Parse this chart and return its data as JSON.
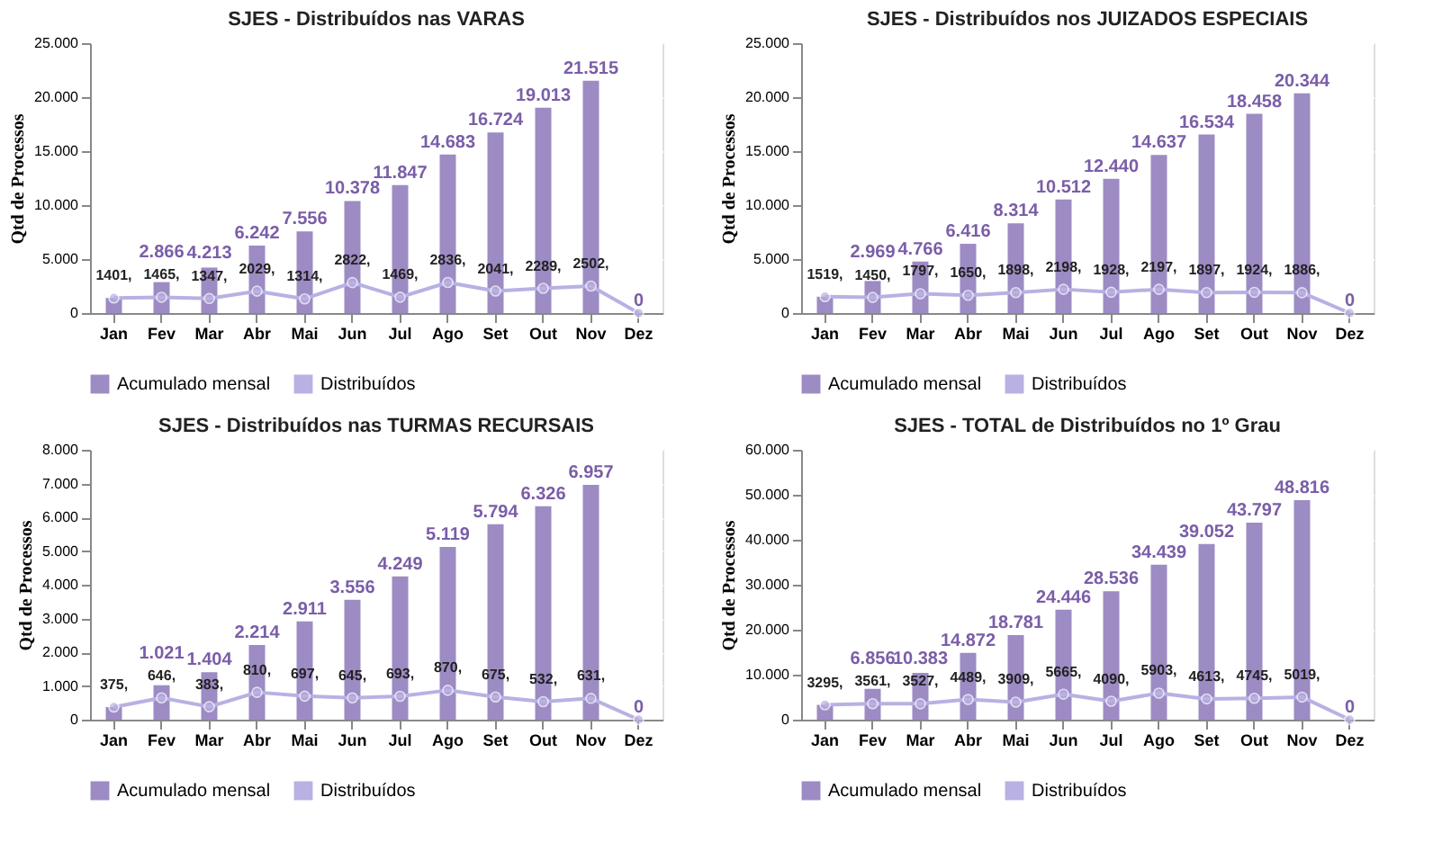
{
  "chart_data": [
    {
      "type": "bar",
      "title": "SJES - Distribuídos nas VARAS",
      "ylabel": "Qtd de Processos",
      "categories": [
        "Jan",
        "Fev",
        "Mar",
        "Abr",
        "Mai",
        "Jun",
        "Jul",
        "Ago",
        "Set",
        "Out",
        "Nov",
        "Dez"
      ],
      "series": [
        {
          "name": "Acumulado mensal",
          "color": "#9d8bc4",
          "values": [
            1401,
            2866,
            4213,
            6242,
            7556,
            10378,
            11847,
            14683,
            16724,
            19013,
            21515,
            0
          ],
          "value_labels": [
            null,
            "2.866",
            "4.213",
            "6.242",
            "7.556",
            "10.378",
            "11.847",
            "14.683",
            "16.724",
            "19.013",
            "21.515",
            "0"
          ]
        },
        {
          "name": "Distribuídos",
          "type": "line",
          "color": "#b9b0e3",
          "values": [
            1401,
            1465,
            1347,
            2029,
            1314,
            2822,
            1469,
            2836,
            2041,
            2289,
            2502,
            0
          ],
          "value_labels": [
            "1401,",
            "1465,",
            "1347,",
            "2029,",
            "1314,",
            "2822,",
            "1469,",
            "2836,",
            "2041,",
            "2289,",
            "2502,",
            null
          ]
        }
      ],
      "ylim": [
        0,
        25000
      ],
      "yticks": [
        0,
        {
          "value": 5000,
          "label": "5.000"
        },
        {
          "value": 10000,
          "label": "10.000"
        },
        {
          "value": 15000,
          "label": "15.000"
        },
        {
          "value": 20000,
          "label": "20.000"
        },
        {
          "value": 25000,
          "label": "25.000"
        }
      ],
      "grid": true,
      "legend": "bottom",
      "marker": "circle"
    },
    {
      "type": "bar",
      "title": "SJES - Distribuídos nos JUIZADOS ESPECIAIS",
      "ylabel": "Qtd de Processos",
      "categories": [
        "Jan",
        "Fev",
        "Mar",
        "Abr",
        "Mai",
        "Jun",
        "Jul",
        "Ago",
        "Set",
        "Out",
        "Nov",
        "Dez"
      ],
      "series": [
        {
          "name": "Acumulado mensal",
          "color": "#9d8bc4",
          "values": [
            1519,
            2969,
            4766,
            6416,
            8314,
            10512,
            12440,
            14637,
            16534,
            18458,
            20344,
            0
          ],
          "value_labels": [
            null,
            "2.969",
            "4.766",
            "6.416",
            "8.314",
            "10.512",
            "12.440",
            "14.637",
            "16.534",
            "18.458",
            "20.344",
            "0"
          ]
        },
        {
          "name": "Distribuídos",
          "type": "line",
          "color": "#b9b0e3",
          "values": [
            1519,
            1450,
            1797,
            1650,
            1898,
            2198,
            1928,
            2197,
            1897,
            1924,
            1886,
            0
          ],
          "value_labels": [
            "1519,",
            "1450,",
            "1797,",
            "1650,",
            "1898,",
            "2198,",
            "1928,",
            "2197,",
            "1897,",
            "1924,",
            "1886,",
            null
          ]
        }
      ],
      "ylim": [
        0,
        25000
      ],
      "yticks": [
        0,
        {
          "value": 5000,
          "label": "5.000"
        },
        {
          "value": 10000,
          "label": "10.000"
        },
        {
          "value": 15000,
          "label": "15.000"
        },
        {
          "value": 20000,
          "label": "20.000"
        },
        {
          "value": 25000,
          "label": "25.000"
        }
      ],
      "grid": true,
      "legend": "bottom",
      "marker": "circle"
    },
    {
      "type": "bar",
      "title": "SJES - Distribuídos nas TURMAS RECURSAIS",
      "ylabel": "Qtd de Processos",
      "categories": [
        "Jan",
        "Fev",
        "Mar",
        "Abr",
        "Mai",
        "Jun",
        "Jul",
        "Ago",
        "Set",
        "Out",
        "Nov",
        "Dez"
      ],
      "series": [
        {
          "name": "Acumulado mensal",
          "color": "#9d8bc4",
          "values": [
            375,
            1021,
            1404,
            2214,
            2911,
            3556,
            4249,
            5119,
            5794,
            6326,
            6957,
            0
          ],
          "value_labels": [
            null,
            "1.021",
            "1.404",
            "2.214",
            "2.911",
            "3.556",
            "4.249",
            "5.119",
            "5.794",
            "6.326",
            "6.957",
            "0"
          ]
        },
        {
          "name": "Distribuídos",
          "type": "line",
          "color": "#b9b0e3",
          "values": [
            375,
            646,
            383,
            810,
            697,
            645,
            693,
            870,
            675,
            532,
            631,
            0
          ],
          "value_labels": [
            "375,",
            "646,",
            "383,",
            "810,",
            "697,",
            "645,",
            "693,",
            "870,",
            "675,",
            "532,",
            "631,",
            null
          ]
        }
      ],
      "ylim": [
        0,
        8000
      ],
      "yticks": [
        0,
        {
          "value": 1000,
          "label": "1.000"
        },
        {
          "value": 2000,
          "label": "2.000"
        },
        {
          "value": 3000,
          "label": "3.000"
        },
        {
          "value": 4000,
          "label": "4.000"
        },
        {
          "value": 5000,
          "label": "5.000"
        },
        {
          "value": 6000,
          "label": "6.000"
        },
        {
          "value": 7000,
          "label": "7.000"
        },
        {
          "value": 8000,
          "label": "8.000"
        }
      ],
      "grid": true,
      "legend": "bottom",
      "marker": "circle"
    },
    {
      "type": "bar",
      "title": "SJES - TOTAL de Distribuídos no 1º Grau",
      "ylabel": "Qtd de Processos",
      "categories": [
        "Jan",
        "Fev",
        "Mar",
        "Abr",
        "Mai",
        "Jun",
        "Jul",
        "Ago",
        "Set",
        "Out",
        "Nov",
        "Dez"
      ],
      "series": [
        {
          "name": "Acumulado mensal",
          "color": "#9d8bc4",
          "values": [
            3295,
            6856,
            10383,
            14872,
            18781,
            24446,
            28536,
            34439,
            39052,
            43797,
            48816,
            0
          ],
          "value_labels": [
            null,
            "6.856",
            "10.383",
            "14.872",
            "18.781",
            "24.446",
            "28.536",
            "34.439",
            "39.052",
            "43.797",
            "48.816",
            "0"
          ]
        },
        {
          "name": "Distribuídos",
          "type": "line",
          "color": "#b9b0e3",
          "values": [
            3295,
            3561,
            3527,
            4489,
            3909,
            5665,
            4090,
            5903,
            4613,
            4745,
            5019,
            0
          ],
          "value_labels": [
            "3295,",
            "3561,",
            "3527,",
            "4489,",
            "3909,",
            "5665,",
            "4090,",
            "5903,",
            "4613,",
            "4745,",
            "5019,",
            null
          ]
        }
      ],
      "ylim": [
        0,
        60000
      ],
      "yticks": [
        0,
        {
          "value": 10000,
          "label": "10.000"
        },
        {
          "value": 20000,
          "label": "20.000"
        },
        {
          "value": 30000,
          "label": "30.000"
        },
        {
          "value": 40000,
          "label": "40.000"
        },
        {
          "value": 50000,
          "label": "50.000"
        },
        {
          "value": 60000,
          "label": "60.000"
        }
      ],
      "grid": true,
      "legend": "bottom",
      "marker": "circle"
    }
  ]
}
